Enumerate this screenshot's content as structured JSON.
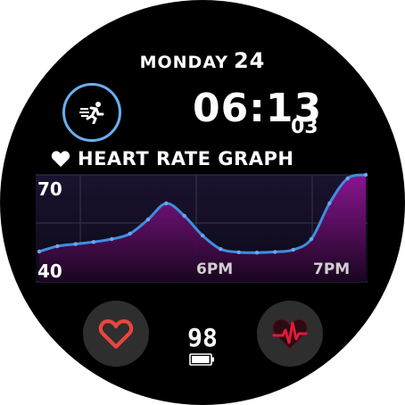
{
  "date": {
    "day": "MONDAY",
    "number": "24"
  },
  "time": {
    "hours_minutes": "06:13",
    "seconds": "03"
  },
  "graph": {
    "title": "HEART RATE GRAPH",
    "y_top": "70",
    "y_bottom": "40",
    "x_labels": [
      "6PM",
      "7PM"
    ]
  },
  "chart_data": {
    "type": "area",
    "title": "HEART RATE GRAPH",
    "ylim": [
      40,
      70
    ],
    "tick_labels_y": [
      "70",
      "40"
    ],
    "tick_labels_x": [
      "6PM",
      "7PM"
    ],
    "series": [
      {
        "values": [
          48.5,
          50,
          50.6,
          51.2,
          52,
          53.5,
          57.5,
          62,
          58.5,
          53,
          49.2,
          48.3,
          48.2,
          48.4,
          49,
          52,
          62,
          69,
          70
        ]
      }
    ]
  },
  "battery": {
    "value": "98",
    "level": 0.98
  },
  "icons": {
    "activity": "running-icon",
    "heart": "heart-icon",
    "heart_rate": "heart-rate-icon",
    "battery": "battery-icon"
  },
  "colors": {
    "ring": "#6aaef0",
    "line": "#3c8fe0",
    "fill": "#7a0f83",
    "heart": "#e8463f",
    "pulse": "#e11a3c"
  }
}
